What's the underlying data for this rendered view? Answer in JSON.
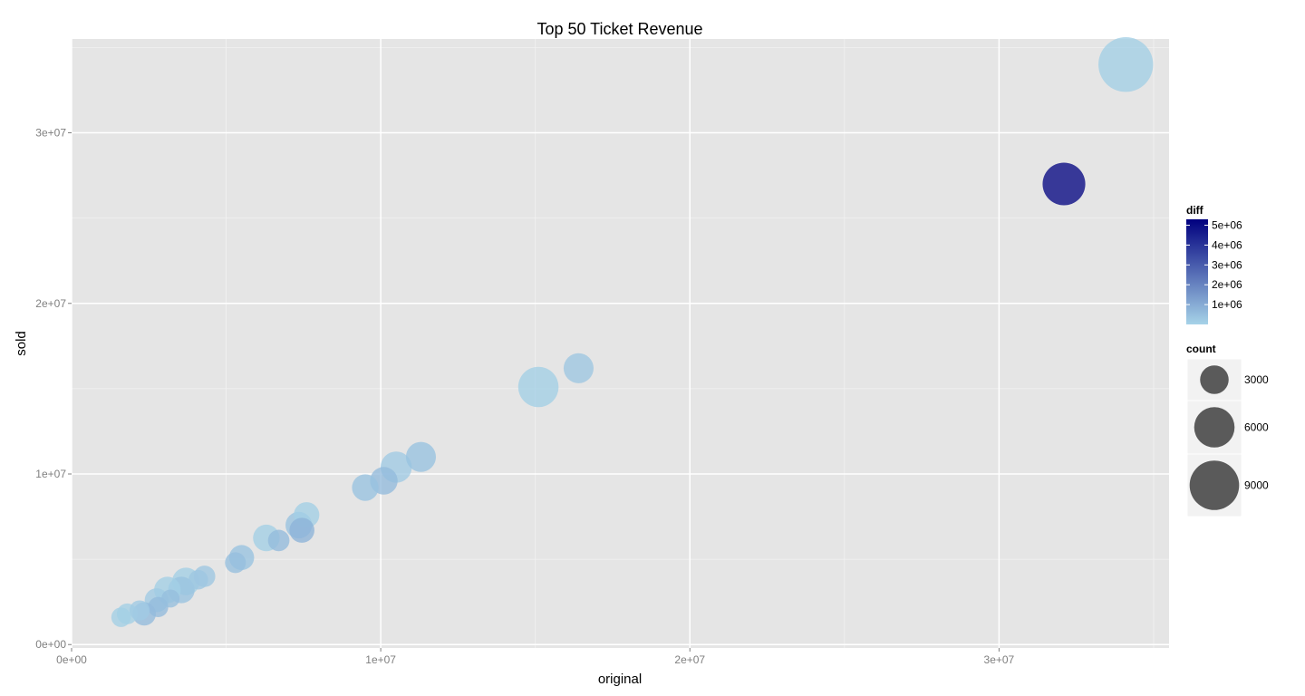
{
  "chart_data": {
    "type": "scatter",
    "title": "Top 50 Ticket Revenue",
    "xlabel": "original",
    "ylabel": "sold",
    "xlim": [
      0,
      35500000
    ],
    "ylim": [
      -200000,
      35500000
    ],
    "x_ticks": [
      {
        "value": 0,
        "label": "0e+00"
      },
      {
        "value": 10000000,
        "label": "1e+07"
      },
      {
        "value": 20000000,
        "label": "2e+07"
      },
      {
        "value": 30000000,
        "label": "3e+07"
      }
    ],
    "y_ticks": [
      {
        "value": 0,
        "label": "0e+00"
      },
      {
        "value": 10000000,
        "label": "1e+07"
      },
      {
        "value": 20000000,
        "label": "2e+07"
      },
      {
        "value": 30000000,
        "label": "3e+07"
      }
    ],
    "grid": true,
    "panel_background": "#e5e5e5",
    "grid_color": "#ffffff",
    "color_scale": {
      "name": "diff",
      "low": "#a6d3e8",
      "high": "#00007f",
      "min": 0,
      "max": 5300000,
      "breaks": [
        {
          "value": 1000000,
          "label": "1e+06"
        },
        {
          "value": 2000000,
          "label": "2e+06"
        },
        {
          "value": 3000000,
          "label": "3e+06"
        },
        {
          "value": 4000000,
          "label": "4e+06"
        },
        {
          "value": 5000000,
          "label": "5e+06"
        }
      ]
    },
    "size_scale": {
      "name": "count",
      "breaks": [
        {
          "value": 3000,
          "label": "3000"
        },
        {
          "value": 6000,
          "label": "6000"
        },
        {
          "value": 9000,
          "label": "9000"
        }
      ],
      "key_color": "#5a5a5a"
    },
    "legend_position": "right",
    "points": [
      {
        "x": 34100000,
        "y": 34000000,
        "diff": 100000,
        "count": 11000
      },
      {
        "x": 32100000,
        "y": 27000000,
        "diff": 5100000,
        "count": 6700
      },
      {
        "x": 16400000,
        "y": 16200000,
        "diff": 300000,
        "count": 3300
      },
      {
        "x": 15100000,
        "y": 15100000,
        "diff": 100000,
        "count": 6000
      },
      {
        "x": 11300000,
        "y": 11000000,
        "diff": 400000,
        "count": 3300
      },
      {
        "x": 10500000,
        "y": 10400000,
        "diff": 200000,
        "count": 3600
      },
      {
        "x": 10100000,
        "y": 9600000,
        "diff": 600000,
        "count": 2800
      },
      {
        "x": 9500000,
        "y": 9200000,
        "diff": 400000,
        "count": 2600
      },
      {
        "x": 7600000,
        "y": 7600000,
        "diff": 100000,
        "count": 2400
      },
      {
        "x": 7350000,
        "y": 7000000,
        "diff": 400000,
        "count": 2600
      },
      {
        "x": 7450000,
        "y": 6700000,
        "diff": 800000,
        "count": 2300
      },
      {
        "x": 6700000,
        "y": 6100000,
        "diff": 600000,
        "count": 1700
      },
      {
        "x": 6300000,
        "y": 6250000,
        "diff": 100000,
        "count": 2600
      },
      {
        "x": 5500000,
        "y": 5100000,
        "diff": 400000,
        "count": 2300
      },
      {
        "x": 5300000,
        "y": 4800000,
        "diff": 500000,
        "count": 1600
      },
      {
        "x": 4300000,
        "y": 4000000,
        "diff": 300000,
        "count": 1700
      },
      {
        "x": 4100000,
        "y": 3800000,
        "diff": 300000,
        "count": 1400
      },
      {
        "x": 3700000,
        "y": 3700000,
        "diff": 100000,
        "count": 2800
      },
      {
        "x": 3550000,
        "y": 3200000,
        "diff": 400000,
        "count": 2600
      },
      {
        "x": 3100000,
        "y": 3200000,
        "diff": 100000,
        "count": 2600
      },
      {
        "x": 3200000,
        "y": 2700000,
        "diff": 500000,
        "count": 1200
      },
      {
        "x": 2750000,
        "y": 2600000,
        "diff": 200000,
        "count": 2100
      },
      {
        "x": 2800000,
        "y": 2200000,
        "diff": 600000,
        "count": 1500
      },
      {
        "x": 2350000,
        "y": 1800000,
        "diff": 600000,
        "count": 2000
      },
      {
        "x": 2200000,
        "y": 2000000,
        "diff": 200000,
        "count": 1500
      },
      {
        "x": 1800000,
        "y": 1800000,
        "diff": 100000,
        "count": 1600
      },
      {
        "x": 1600000,
        "y": 1600000,
        "diff": 100000,
        "count": 1400
      }
    ]
  }
}
